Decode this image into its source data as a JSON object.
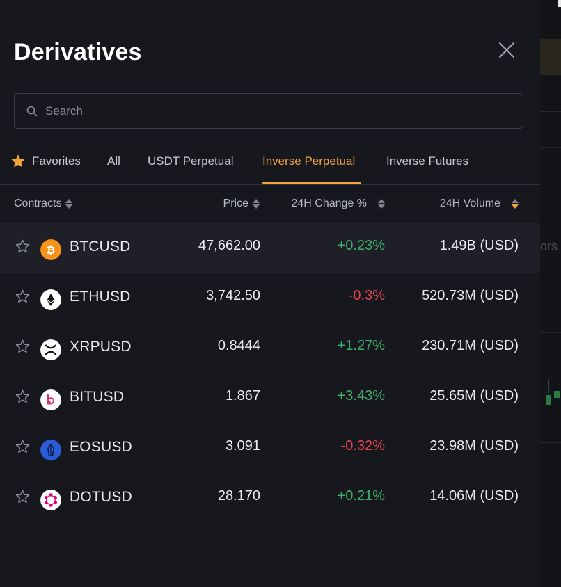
{
  "drawer": {
    "title": "Derivatives"
  },
  "search": {
    "placeholder": "Search",
    "value": ""
  },
  "tabs": [
    {
      "label": "Favorites",
      "icon": "star-icon",
      "active": false
    },
    {
      "label": "All",
      "active": false
    },
    {
      "label": "USDT Perpetual",
      "active": false
    },
    {
      "label": "Inverse Perpetual",
      "active": true
    },
    {
      "label": "Inverse Futures",
      "active": false
    }
  ],
  "columns": {
    "contracts": "Contracts",
    "price": "Price",
    "change": "24H Change %",
    "volume": "24H Volume",
    "sorted_by": "24H Volume",
    "sort_direction": "desc"
  },
  "rows": [
    {
      "symbol": "BTCUSD",
      "price": "47,662.00",
      "change": "+0.23%",
      "direction": "up",
      "volume": "1.49B (USD)",
      "coin_icon": "bitcoin-icon",
      "coin_color": "#f7931a"
    },
    {
      "symbol": "ETHUSD",
      "price": "3,742.50",
      "change": "-0.3%",
      "direction": "down",
      "volume": "520.73M (USD)",
      "coin_icon": "ethereum-icon",
      "coin_color": "#ffffff"
    },
    {
      "symbol": "XRPUSD",
      "price": "0.8444",
      "change": "+1.27%",
      "direction": "up",
      "volume": "230.71M (USD)",
      "coin_icon": "xrp-icon",
      "coin_color": "#ffffff"
    },
    {
      "symbol": "BITUSD",
      "price": "1.867",
      "change": "+3.43%",
      "direction": "up",
      "volume": "25.65M (USD)",
      "coin_icon": "bitdao-icon",
      "coin_color": "#ffffff"
    },
    {
      "symbol": "EOSUSD",
      "price": "3.091",
      "change": "-0.32%",
      "direction": "down",
      "volume": "23.98M (USD)",
      "coin_icon": "eos-icon",
      "coin_color": "#2a5cd9"
    },
    {
      "symbol": "DOTUSD",
      "price": "28.170",
      "change": "+0.21%",
      "direction": "up",
      "volume": "14.06M (USD)",
      "coin_icon": "polkadot-icon",
      "coin_color": "#ffffff"
    }
  ],
  "colors": {
    "accent": "#f0a43a",
    "positive": "#3fae6b",
    "negative": "#e0474d",
    "background": "#17181e"
  },
  "background_app": {
    "partial_text": "ors"
  }
}
